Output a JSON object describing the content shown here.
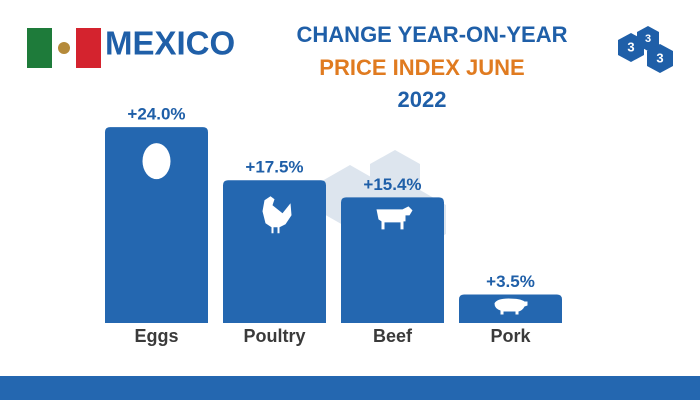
{
  "chart_data": {
    "type": "bar",
    "country": "MEXICO",
    "title": [
      "CHANGE YEAR-ON-YEAR",
      "PRICE INDEX JUNE"
    ],
    "subtitle": "2022",
    "logo": [
      "3",
      "3",
      "3"
    ],
    "categories": [
      "Eggs",
      "Poultry",
      "Beef",
      "Pork"
    ],
    "values": [
      24.0,
      17.5,
      15.4,
      3.5
    ],
    "value_labels": [
      "+24.0%",
      "+17.5%",
      "+15.4%",
      "+3.5%"
    ],
    "color": "#2467b0"
  }
}
